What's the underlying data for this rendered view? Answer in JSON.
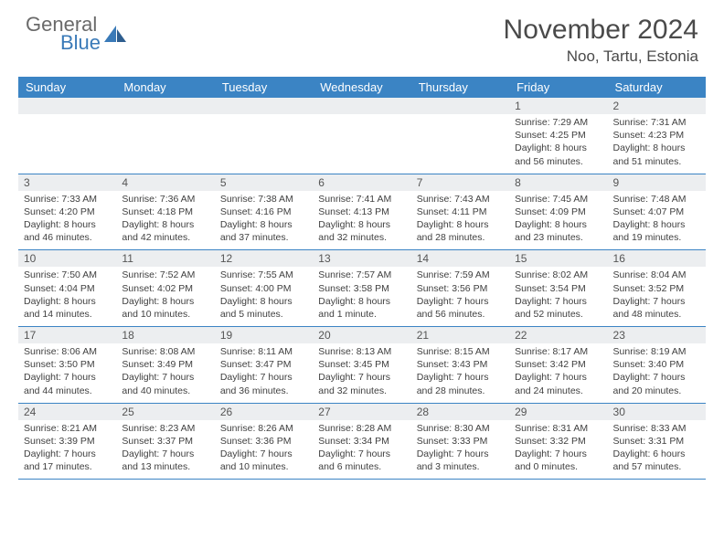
{
  "brand": {
    "name1": "General",
    "name2": "Blue"
  },
  "header": {
    "title": "November 2024",
    "location": "Noo, Tartu, Estonia"
  },
  "colors": {
    "header_bg": "#3b84c4",
    "daynum_bg": "#eceef0",
    "border": "#3b84c4",
    "text": "#404040",
    "brand_gray": "#6a6a6a",
    "brand_blue": "#3a7ab8"
  },
  "dayNames": [
    "Sunday",
    "Monday",
    "Tuesday",
    "Wednesday",
    "Thursday",
    "Friday",
    "Saturday"
  ],
  "weeks": [
    [
      null,
      null,
      null,
      null,
      null,
      {
        "n": "1",
        "sr": "7:29 AM",
        "ss": "4:25 PM",
        "dl": "8 hours and 56 minutes."
      },
      {
        "n": "2",
        "sr": "7:31 AM",
        "ss": "4:23 PM",
        "dl": "8 hours and 51 minutes."
      }
    ],
    [
      {
        "n": "3",
        "sr": "7:33 AM",
        "ss": "4:20 PM",
        "dl": "8 hours and 46 minutes."
      },
      {
        "n": "4",
        "sr": "7:36 AM",
        "ss": "4:18 PM",
        "dl": "8 hours and 42 minutes."
      },
      {
        "n": "5",
        "sr": "7:38 AM",
        "ss": "4:16 PM",
        "dl": "8 hours and 37 minutes."
      },
      {
        "n": "6",
        "sr": "7:41 AM",
        "ss": "4:13 PM",
        "dl": "8 hours and 32 minutes."
      },
      {
        "n": "7",
        "sr": "7:43 AM",
        "ss": "4:11 PM",
        "dl": "8 hours and 28 minutes."
      },
      {
        "n": "8",
        "sr": "7:45 AM",
        "ss": "4:09 PM",
        "dl": "8 hours and 23 minutes."
      },
      {
        "n": "9",
        "sr": "7:48 AM",
        "ss": "4:07 PM",
        "dl": "8 hours and 19 minutes."
      }
    ],
    [
      {
        "n": "10",
        "sr": "7:50 AM",
        "ss": "4:04 PM",
        "dl": "8 hours and 14 minutes."
      },
      {
        "n": "11",
        "sr": "7:52 AM",
        "ss": "4:02 PM",
        "dl": "8 hours and 10 minutes."
      },
      {
        "n": "12",
        "sr": "7:55 AM",
        "ss": "4:00 PM",
        "dl": "8 hours and 5 minutes."
      },
      {
        "n": "13",
        "sr": "7:57 AM",
        "ss": "3:58 PM",
        "dl": "8 hours and 1 minute."
      },
      {
        "n": "14",
        "sr": "7:59 AM",
        "ss": "3:56 PM",
        "dl": "7 hours and 56 minutes."
      },
      {
        "n": "15",
        "sr": "8:02 AM",
        "ss": "3:54 PM",
        "dl": "7 hours and 52 minutes."
      },
      {
        "n": "16",
        "sr": "8:04 AM",
        "ss": "3:52 PM",
        "dl": "7 hours and 48 minutes."
      }
    ],
    [
      {
        "n": "17",
        "sr": "8:06 AM",
        "ss": "3:50 PM",
        "dl": "7 hours and 44 minutes."
      },
      {
        "n": "18",
        "sr": "8:08 AM",
        "ss": "3:49 PM",
        "dl": "7 hours and 40 minutes."
      },
      {
        "n": "19",
        "sr": "8:11 AM",
        "ss": "3:47 PM",
        "dl": "7 hours and 36 minutes."
      },
      {
        "n": "20",
        "sr": "8:13 AM",
        "ss": "3:45 PM",
        "dl": "7 hours and 32 minutes."
      },
      {
        "n": "21",
        "sr": "8:15 AM",
        "ss": "3:43 PM",
        "dl": "7 hours and 28 minutes."
      },
      {
        "n": "22",
        "sr": "8:17 AM",
        "ss": "3:42 PM",
        "dl": "7 hours and 24 minutes."
      },
      {
        "n": "23",
        "sr": "8:19 AM",
        "ss": "3:40 PM",
        "dl": "7 hours and 20 minutes."
      }
    ],
    [
      {
        "n": "24",
        "sr": "8:21 AM",
        "ss": "3:39 PM",
        "dl": "7 hours and 17 minutes."
      },
      {
        "n": "25",
        "sr": "8:23 AM",
        "ss": "3:37 PM",
        "dl": "7 hours and 13 minutes."
      },
      {
        "n": "26",
        "sr": "8:26 AM",
        "ss": "3:36 PM",
        "dl": "7 hours and 10 minutes."
      },
      {
        "n": "27",
        "sr": "8:28 AM",
        "ss": "3:34 PM",
        "dl": "7 hours and 6 minutes."
      },
      {
        "n": "28",
        "sr": "8:30 AM",
        "ss": "3:33 PM",
        "dl": "7 hours and 3 minutes."
      },
      {
        "n": "29",
        "sr": "8:31 AM",
        "ss": "3:32 PM",
        "dl": "7 hours and 0 minutes."
      },
      {
        "n": "30",
        "sr": "8:33 AM",
        "ss": "3:31 PM",
        "dl": "6 hours and 57 minutes."
      }
    ]
  ],
  "labels": {
    "sunrise": "Sunrise:",
    "sunset": "Sunset:",
    "daylight": "Daylight:"
  }
}
